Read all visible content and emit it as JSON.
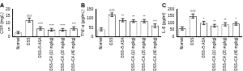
{
  "chart_data": [
    {
      "type": "bar",
      "title": "A",
      "ylabel": "CRP (mg/L)",
      "categories": [
        "Normal",
        "DSS",
        "DSS+5-ASA",
        "DSS+CA (10 mg/kg)",
        "DSS+CA (20 mg/kg)",
        "DSS+CA (40 mg/kg)"
      ],
      "values": [
        3,
        12,
        6,
        5,
        5,
        6
      ],
      "errors": [
        0.8,
        1.5,
        1.2,
        1,
        1,
        1.2
      ],
      "annotations": [
        null,
        "###",
        "****",
        "****",
        "****",
        "***"
      ],
      "color": "#ffffff",
      "ylim": [
        0,
        20
      ],
      "yticks": [
        0,
        5,
        10,
        15,
        20
      ],
      "grid": false
    },
    {
      "type": "bar",
      "title": "B",
      "ylabel": "TNF-α (pg/mL)",
      "categories": [
        "Normal",
        "DSS",
        "DSS+5-ASA",
        "DSS+CA (10 mg/kg)",
        "DSS+CA (20 mg/kg)",
        "DSS+CA (40 mg/kg)"
      ],
      "values": [
        40,
        120,
        90,
        85,
        85,
        60
      ],
      "errors": [
        8,
        10,
        9,
        8,
        9,
        10
      ],
      "annotations": [
        null,
        "###",
        "**",
        "**",
        "**",
        "***"
      ],
      "color": "#ffffff",
      "ylim": [
        0,
        150
      ],
      "yticks": [
        0,
        50,
        100,
        150
      ],
      "grid": false
    },
    {
      "type": "bar",
      "title": "C",
      "ylabel": "IL-6 (pg/ml)",
      "categories": [
        "Normal",
        "DSS",
        "DSS+5-ASA",
        "DSS+CA (10 mg/kg)",
        "DSS+CA (20 mg/kg)",
        "DSS+CA (40 mg/kg)"
      ],
      "values": [
        60,
        150,
        100,
        80,
        90,
        95
      ],
      "errors": [
        12,
        15,
        12,
        10,
        12,
        12
      ],
      "annotations": [
        null,
        "###",
        "*",
        "**",
        "**",
        "*"
      ],
      "color": "#ffffff",
      "ylim": [
        0,
        200
      ],
      "yticks": [
        0,
        50,
        100,
        150,
        200
      ],
      "grid": false
    }
  ]
}
